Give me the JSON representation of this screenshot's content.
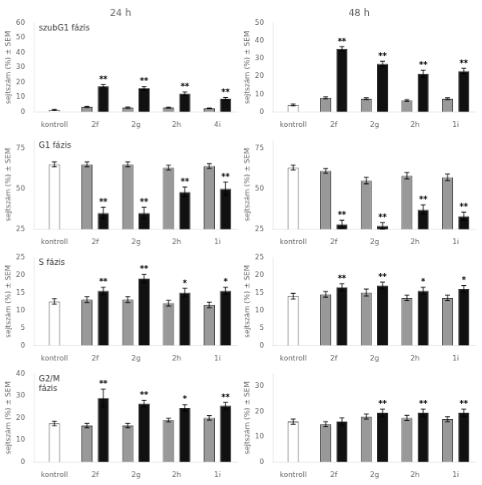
{
  "chart_data": [
    {
      "type": "bar",
      "title": "24 h",
      "ylabel": "sejtszám (%) ± SEM",
      "annotation": "szubG1 fázis",
      "categories": [
        "kontroll",
        "2f",
        "2g",
        "2h",
        "4i"
      ],
      "series": [
        {
          "color": "#ffffff",
          "values": [
            1.5,
            null,
            null,
            null,
            null
          ],
          "errors": [
            0.3,
            null,
            null,
            null,
            null
          ]
        },
        {
          "color": "#999999",
          "values": [
            null,
            3.5,
            3.0,
            3.0,
            2.5
          ],
          "errors": [
            null,
            0.4,
            0.5,
            0.4,
            0.3
          ]
        },
        {
          "color": "#111111",
          "values": [
            null,
            17.5,
            16.0,
            12.5,
            9.0
          ],
          "errors": [
            null,
            1.0,
            1.2,
            1.0,
            0.8
          ],
          "significance": [
            null,
            "**",
            "**",
            "**",
            "**"
          ]
        }
      ],
      "ylim": [
        0,
        60
      ],
      "yticks": [
        0,
        10,
        20,
        30,
        40,
        50,
        60
      ],
      "grid": false
    },
    {
      "type": "bar",
      "title": "48 h",
      "ylabel": "sejtszám (%) ± SEM",
      "categories": [
        "kontroll",
        "2f",
        "2g",
        "2h",
        "1i"
      ],
      "series": [
        {
          "color": "#ffffff",
          "values": [
            4.0,
            null,
            null,
            null,
            null
          ],
          "errors": [
            0.5,
            null,
            null,
            null,
            null
          ]
        },
        {
          "color": "#999999",
          "values": [
            null,
            8.0,
            7.5,
            6.5,
            7.5
          ],
          "errors": [
            null,
            0.5,
            0.5,
            0.5,
            0.5
          ]
        },
        {
          "color": "#111111",
          "values": [
            null,
            35.5,
            27.0,
            21.5,
            23.0
          ],
          "errors": [
            null,
            1.2,
            1.5,
            2.0,
            1.5
          ],
          "significance": [
            null,
            "**",
            "**",
            "**",
            "**"
          ]
        }
      ],
      "ylim": [
        0,
        50
      ],
      "yticks": [
        0,
        10,
        20,
        30,
        40,
        50
      ],
      "grid": false
    },
    {
      "type": "bar",
      "ylabel": "sejtszám (%) ± SEM",
      "annotation": "G1 fázis",
      "categories": [
        "kontroll",
        "2f",
        "2g",
        "2h",
        "1i"
      ],
      "series": [
        {
          "color": "#ffffff",
          "values": [
            65.0,
            null,
            null,
            null,
            null
          ],
          "errors": [
            1.5,
            null,
            null,
            null,
            null
          ]
        },
        {
          "color": "#999999",
          "values": [
            null,
            65.0,
            65.0,
            63.0,
            64.0
          ],
          "errors": [
            null,
            1.5,
            1.5,
            1.5,
            1.5
          ]
        },
        {
          "color": "#111111",
          "values": [
            null,
            35.0,
            35.0,
            48.0,
            50.0
          ],
          "errors": [
            null,
            3.5,
            3.5,
            3.0,
            4.0
          ],
          "significance": [
            null,
            "**",
            "**",
            "**",
            "**"
          ]
        }
      ],
      "ylim": [
        25,
        80
      ],
      "yticks": [
        25,
        50,
        75
      ],
      "grid": false
    },
    {
      "type": "bar",
      "ylabel": "sejtszám (%) ± SEM",
      "categories": [
        "kontroll",
        "2f",
        "2g",
        "2h",
        "1i"
      ],
      "series": [
        {
          "color": "#ffffff",
          "values": [
            63.0,
            null,
            null,
            null,
            null
          ],
          "errors": [
            1.5,
            null,
            null,
            null,
            null
          ]
        },
        {
          "color": "#999999",
          "values": [
            null,
            61.0,
            55.0,
            58.0,
            57.0
          ],
          "errors": [
            null,
            1.5,
            2.0,
            2.0,
            2.0
          ]
        },
        {
          "color": "#111111",
          "values": [
            null,
            28.0,
            27.0,
            37.0,
            33.0
          ],
          "errors": [
            null,
            2.5,
            2.0,
            3.0,
            2.5
          ],
          "significance": [
            null,
            "**",
            "**",
            "**",
            "**"
          ]
        }
      ],
      "ylim": [
        25,
        80
      ],
      "yticks": [
        25,
        50,
        75
      ],
      "grid": false
    },
    {
      "type": "bar",
      "ylabel": "sejtszám (%) ± SEM",
      "annotation": "S fázis",
      "categories": [
        "kontroll",
        "2f",
        "2g",
        "2h",
        "1i"
      ],
      "series": [
        {
          "color": "#ffffff",
          "values": [
            12.5,
            null,
            null,
            null,
            null
          ],
          "errors": [
            0.8,
            null,
            null,
            null,
            null
          ]
        },
        {
          "color": "#999999",
          "values": [
            null,
            13.0,
            13.0,
            12.0,
            11.5
          ],
          "errors": [
            null,
            0.8,
            0.8,
            0.8,
            0.8
          ]
        },
        {
          "color": "#111111",
          "values": [
            null,
            15.5,
            19.0,
            15.0,
            15.5
          ],
          "errors": [
            null,
            1.0,
            1.2,
            1.2,
            1.0
          ],
          "significance": [
            null,
            "**",
            "**",
            "*",
            "*"
          ]
        }
      ],
      "ylim": [
        0,
        25
      ],
      "yticks": [
        0,
        5,
        10,
        15,
        20,
        25
      ],
      "grid": false
    },
    {
      "type": "bar",
      "ylabel": "sejtszám (%) ± SEM",
      "categories": [
        "kontroll",
        "2f",
        "2g",
        "2h",
        "1i"
      ],
      "series": [
        {
          "color": "#ffffff",
          "values": [
            14.0,
            null,
            null,
            null,
            null
          ],
          "errors": [
            0.8,
            null,
            null,
            null,
            null
          ]
        },
        {
          "color": "#999999",
          "values": [
            null,
            14.5,
            15.0,
            13.5,
            13.5
          ],
          "errors": [
            null,
            0.8,
            1.0,
            0.8,
            0.8
          ]
        },
        {
          "color": "#111111",
          "values": [
            null,
            16.5,
            17.0,
            15.5,
            16.0
          ],
          "errors": [
            null,
            1.0,
            1.0,
            1.0,
            1.0
          ],
          "significance": [
            null,
            "**",
            "**",
            "*",
            "*"
          ]
        }
      ],
      "ylim": [
        0,
        25
      ],
      "yticks": [
        0,
        5,
        10,
        15,
        20,
        25
      ],
      "grid": false
    },
    {
      "type": "bar",
      "ylabel": "sejtszám (%) ± SEM",
      "annotation": "G2/M\nfázis",
      "categories": [
        "kontroll",
        "2f",
        "2g",
        "2h",
        "1i"
      ],
      "series": [
        {
          "color": "#ffffff",
          "values": [
            17.5,
            null,
            null,
            null,
            null
          ],
          "errors": [
            1.0,
            null,
            null,
            null,
            null
          ]
        },
        {
          "color": "#999999",
          "values": [
            null,
            16.5,
            16.5,
            19.0,
            20.0
          ],
          "errors": [
            null,
            1.0,
            1.0,
            0.8,
            1.0
          ]
        },
        {
          "color": "#111111",
          "values": [
            null,
            29.0,
            26.5,
            24.5,
            25.5
          ],
          "errors": [
            null,
            4.0,
            1.5,
            1.5,
            1.5
          ],
          "significance": [
            null,
            "**",
            "**",
            "*",
            "**"
          ]
        }
      ],
      "ylim": [
        0,
        40
      ],
      "yticks": [
        0,
        10,
        20,
        30,
        40
      ],
      "grid": false
    },
    {
      "type": "bar",
      "ylabel": "sejtszám (%) ± SEM",
      "categories": [
        "kontroll",
        "2f",
        "2g",
        "2h",
        "1i"
      ],
      "series": [
        {
          "color": "#ffffff",
          "values": [
            16.0,
            null,
            null,
            null,
            null
          ],
          "errors": [
            1.0,
            null,
            null,
            null,
            null
          ]
        },
        {
          "color": "#999999",
          "values": [
            null,
            15.0,
            18.0,
            17.5,
            17.0
          ],
          "errors": [
            null,
            1.0,
            1.0,
            1.0,
            1.0
          ]
        },
        {
          "color": "#111111",
          "values": [
            null,
            16.0,
            19.5,
            19.5,
            19.5
          ],
          "errors": [
            null,
            1.5,
            1.5,
            1.5,
            1.5
          ],
          "significance": [
            null,
            null,
            "**",
            "**",
            "**"
          ]
        }
      ],
      "ylim": [
        0,
        35
      ],
      "yticks": [
        0,
        10,
        20,
        30
      ],
      "grid": false
    }
  ]
}
